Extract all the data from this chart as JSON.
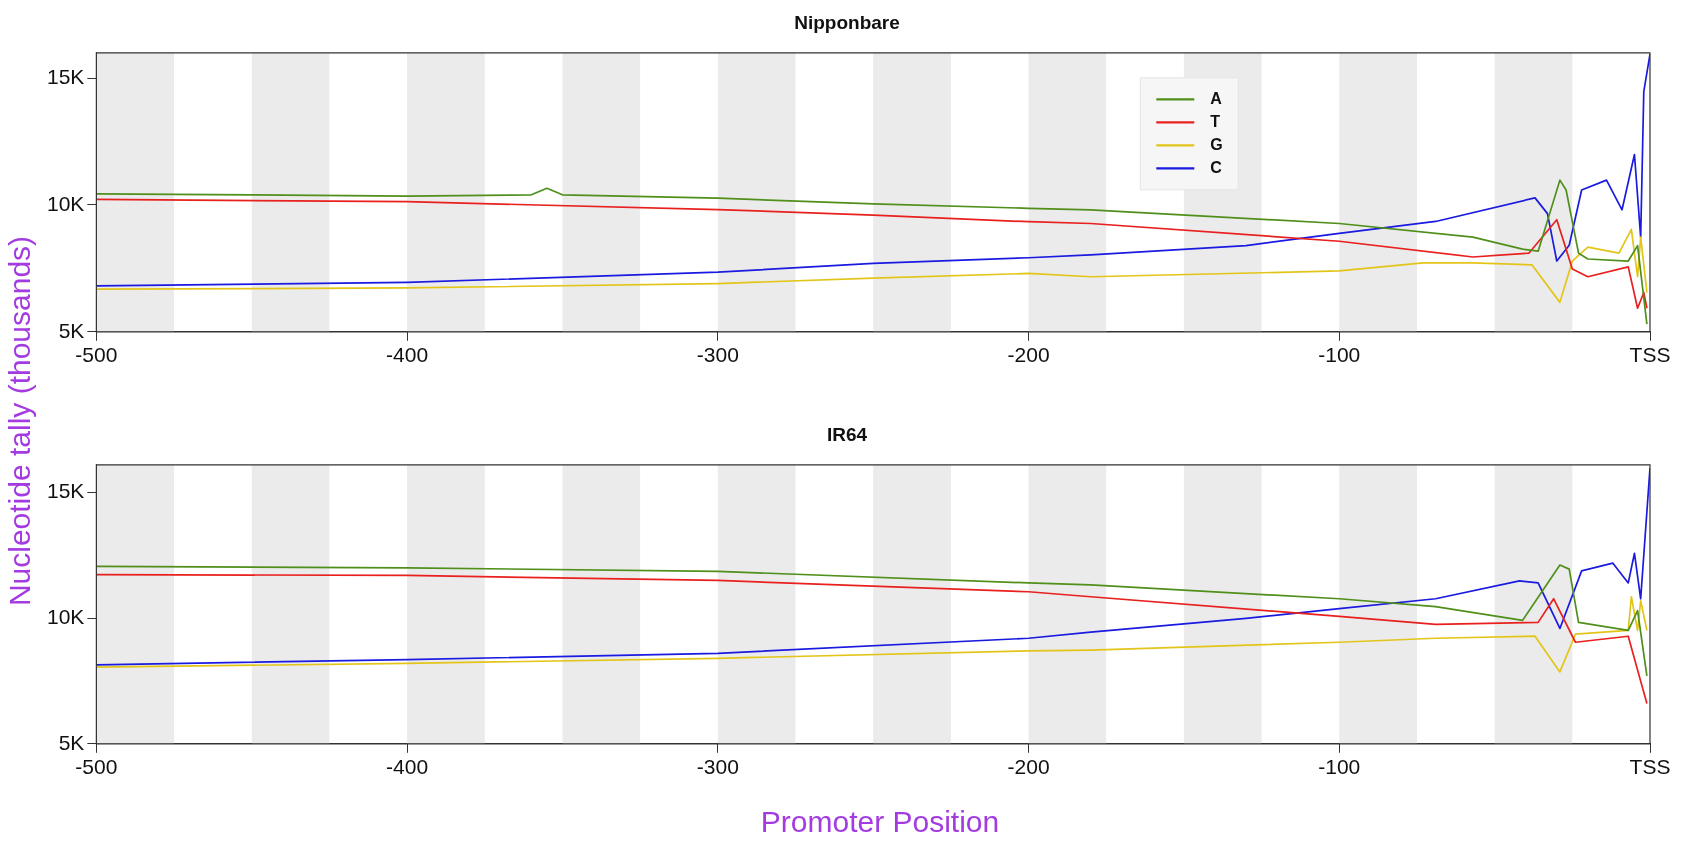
{
  "chart_data": [
    {
      "type": "line",
      "title": "Nipponbare",
      "ylabel": "Nucleotide tally (thousands)",
      "xlim": [
        -500,
        0
      ],
      "xticks": [
        -500,
        -400,
        -300,
        -200,
        -100,
        {
          "value": 0,
          "label": "TSS"
        }
      ],
      "ylim": [
        5,
        16
      ],
      "yticks": [
        {
          "value": 5,
          "label": "5K"
        },
        {
          "value": 10,
          "label": "10K"
        },
        {
          "value": 15,
          "label": "15K"
        }
      ],
      "legend": "top right",
      "grid": false,
      "bands": [
        {
          "axis": "x",
          "from": -500,
          "to": -475,
          "color": "#ebebeb"
        },
        {
          "axis": "x",
          "from": -450,
          "to": -425,
          "color": "#ebebeb"
        },
        {
          "axis": "x",
          "from": -400,
          "to": -375,
          "color": "#ebebeb"
        },
        {
          "axis": "x",
          "from": -350,
          "to": -325,
          "color": "#ebebeb"
        },
        {
          "axis": "x",
          "from": -300,
          "to": -275,
          "color": "#ebebeb"
        },
        {
          "axis": "x",
          "from": -250,
          "to": -225,
          "color": "#ebebeb"
        },
        {
          "axis": "x",
          "from": -200,
          "to": -175,
          "color": "#ebebeb"
        },
        {
          "axis": "x",
          "from": -150,
          "to": -125,
          "color": "#ebebeb"
        },
        {
          "axis": "x",
          "from": -100,
          "to": -75,
          "color": "#ebebeb"
        },
        {
          "axis": "x",
          "from": -50,
          "to": -25,
          "color": "#ebebeb"
        }
      ],
      "series": [
        {
          "name": "A",
          "color": "#4f8f1a",
          "x": [
            -500,
            -450,
            -400,
            -360,
            -355,
            -350,
            -300,
            -250,
            -200,
            -180,
            -100,
            -57,
            -41,
            -36,
            -29,
            -27,
            -23,
            -20,
            -7,
            -4,
            -1
          ],
          "values": [
            10.44,
            10.4,
            10.35,
            10.4,
            10.66,
            10.4,
            10.27,
            10.04,
            9.87,
            9.81,
            9.27,
            8.73,
            8.26,
            8.18,
            10.98,
            10.59,
            8.1,
            7.87,
            7.79,
            8.4,
            5.3
          ]
        },
        {
          "name": "T",
          "color": "#e8201e",
          "x": [
            -500,
            -400,
            -300,
            -250,
            -200,
            -180,
            -100,
            -57,
            -39,
            -30,
            -25,
            -20,
            -7,
            -4,
            -2,
            -1
          ],
          "values": [
            10.22,
            10.13,
            9.82,
            9.6,
            9.34,
            9.27,
            8.57,
            7.95,
            8.1,
            9.42,
            7.48,
            7.17,
            7.56,
            5.93,
            6.55,
            5.93
          ]
        },
        {
          "name": "G",
          "color": "#e3c51a",
          "x": [
            -500,
            -400,
            -300,
            -250,
            -200,
            -180,
            -100,
            -73,
            -57,
            -38,
            -29,
            -25,
            -20,
            -10,
            -6,
            -4,
            -3,
            -1
          ],
          "values": [
            6.68,
            6.73,
            6.9,
            7.12,
            7.3,
            7.17,
            7.4,
            7.72,
            7.72,
            7.64,
            6.16,
            7.79,
            8.34,
            8.1,
            9.04,
            7.17,
            8.73,
            6.55
          ]
        },
        {
          "name": "C",
          "color": "#1a1ae0",
          "x": [
            -500,
            -400,
            -300,
            -250,
            -200,
            -180,
            -130,
            -100,
            -69,
            -37,
            -33,
            -30,
            -26,
            -22,
            -14,
            -9,
            -5,
            -3,
            -2,
            0
          ],
          "values": [
            6.81,
            6.95,
            7.35,
            7.7,
            7.92,
            8.03,
            8.4,
            8.88,
            9.35,
            10.28,
            9.66,
            7.79,
            8.41,
            10.59,
            10.98,
            9.81,
            11.99,
            8.73,
            14.47,
            15.95
          ]
        }
      ]
    },
    {
      "type": "line",
      "title": "IR64",
      "xlabel": "Promoter Position",
      "xlim": [
        -500,
        0
      ],
      "xticks": [
        -500,
        -400,
        -300,
        -200,
        -100,
        {
          "value": 0,
          "label": "TSS"
        }
      ],
      "ylim": [
        5,
        16.1
      ],
      "yticks": [
        {
          "value": 5,
          "label": "5K"
        },
        {
          "value": 10,
          "label": "10K"
        },
        {
          "value": 15,
          "label": "15K"
        }
      ],
      "grid": false,
      "bands": [
        {
          "axis": "x",
          "from": -500,
          "to": -475,
          "color": "#ebebeb"
        },
        {
          "axis": "x",
          "from": -450,
          "to": -425,
          "color": "#ebebeb"
        },
        {
          "axis": "x",
          "from": -400,
          "to": -375,
          "color": "#ebebeb"
        },
        {
          "axis": "x",
          "from": -350,
          "to": -325,
          "color": "#ebebeb"
        },
        {
          "axis": "x",
          "from": -300,
          "to": -275,
          "color": "#ebebeb"
        },
        {
          "axis": "x",
          "from": -250,
          "to": -225,
          "color": "#ebebeb"
        },
        {
          "axis": "x",
          "from": -200,
          "to": -175,
          "color": "#ebebeb"
        },
        {
          "axis": "x",
          "from": -150,
          "to": -125,
          "color": "#ebebeb"
        },
        {
          "axis": "x",
          "from": -100,
          "to": -75,
          "color": "#ebebeb"
        },
        {
          "axis": "x",
          "from": -50,
          "to": -25,
          "color": "#ebebeb"
        }
      ],
      "series": [
        {
          "color": "#4f8f1a",
          "x": [
            -500,
            -400,
            -300,
            -200,
            -180,
            -100,
            -69,
            -41,
            -29,
            -26,
            -23,
            -7,
            -4,
            -1
          ],
          "values": [
            12.06,
            12.0,
            11.86,
            11.4,
            11.32,
            10.77,
            10.46,
            9.91,
            12.11,
            11.95,
            9.83,
            9.51,
            10.3,
            7.7
          ]
        },
        {
          "color": "#e8201e",
          "x": [
            -500,
            -400,
            -300,
            -200,
            -180,
            -100,
            -69,
            -36,
            -31,
            -24,
            -7,
            -4,
            -1
          ],
          "values": [
            11.73,
            11.7,
            11.5,
            11.05,
            10.85,
            10.07,
            9.75,
            9.83,
            10.77,
            9.04,
            9.28,
            7.94,
            6.6
          ]
        },
        {
          "color": "#e3c51a",
          "x": [
            -500,
            -400,
            -300,
            -200,
            -180,
            -100,
            -69,
            -37,
            -29,
            -24,
            -7,
            -6,
            -4,
            -3,
            -1
          ],
          "values": [
            8.05,
            8.2,
            8.4,
            8.7,
            8.73,
            9.04,
            9.2,
            9.28,
            7.86,
            9.36,
            9.51,
            10.85,
            9.51,
            10.69,
            9.51
          ]
        },
        {
          "color": "#1a1ae0",
          "x": [
            -500,
            -400,
            -300,
            -200,
            -180,
            -130,
            -100,
            -69,
            -42,
            -36,
            -29,
            -22,
            -12,
            -7,
            -5,
            -3,
            0
          ],
          "values": [
            8.14,
            8.35,
            8.6,
            9.2,
            9.44,
            9.99,
            10.38,
            10.77,
            11.48,
            11.4,
            9.59,
            11.88,
            12.19,
            11.4,
            12.58,
            10.77,
            15.97
          ]
        }
      ]
    }
  ]
}
